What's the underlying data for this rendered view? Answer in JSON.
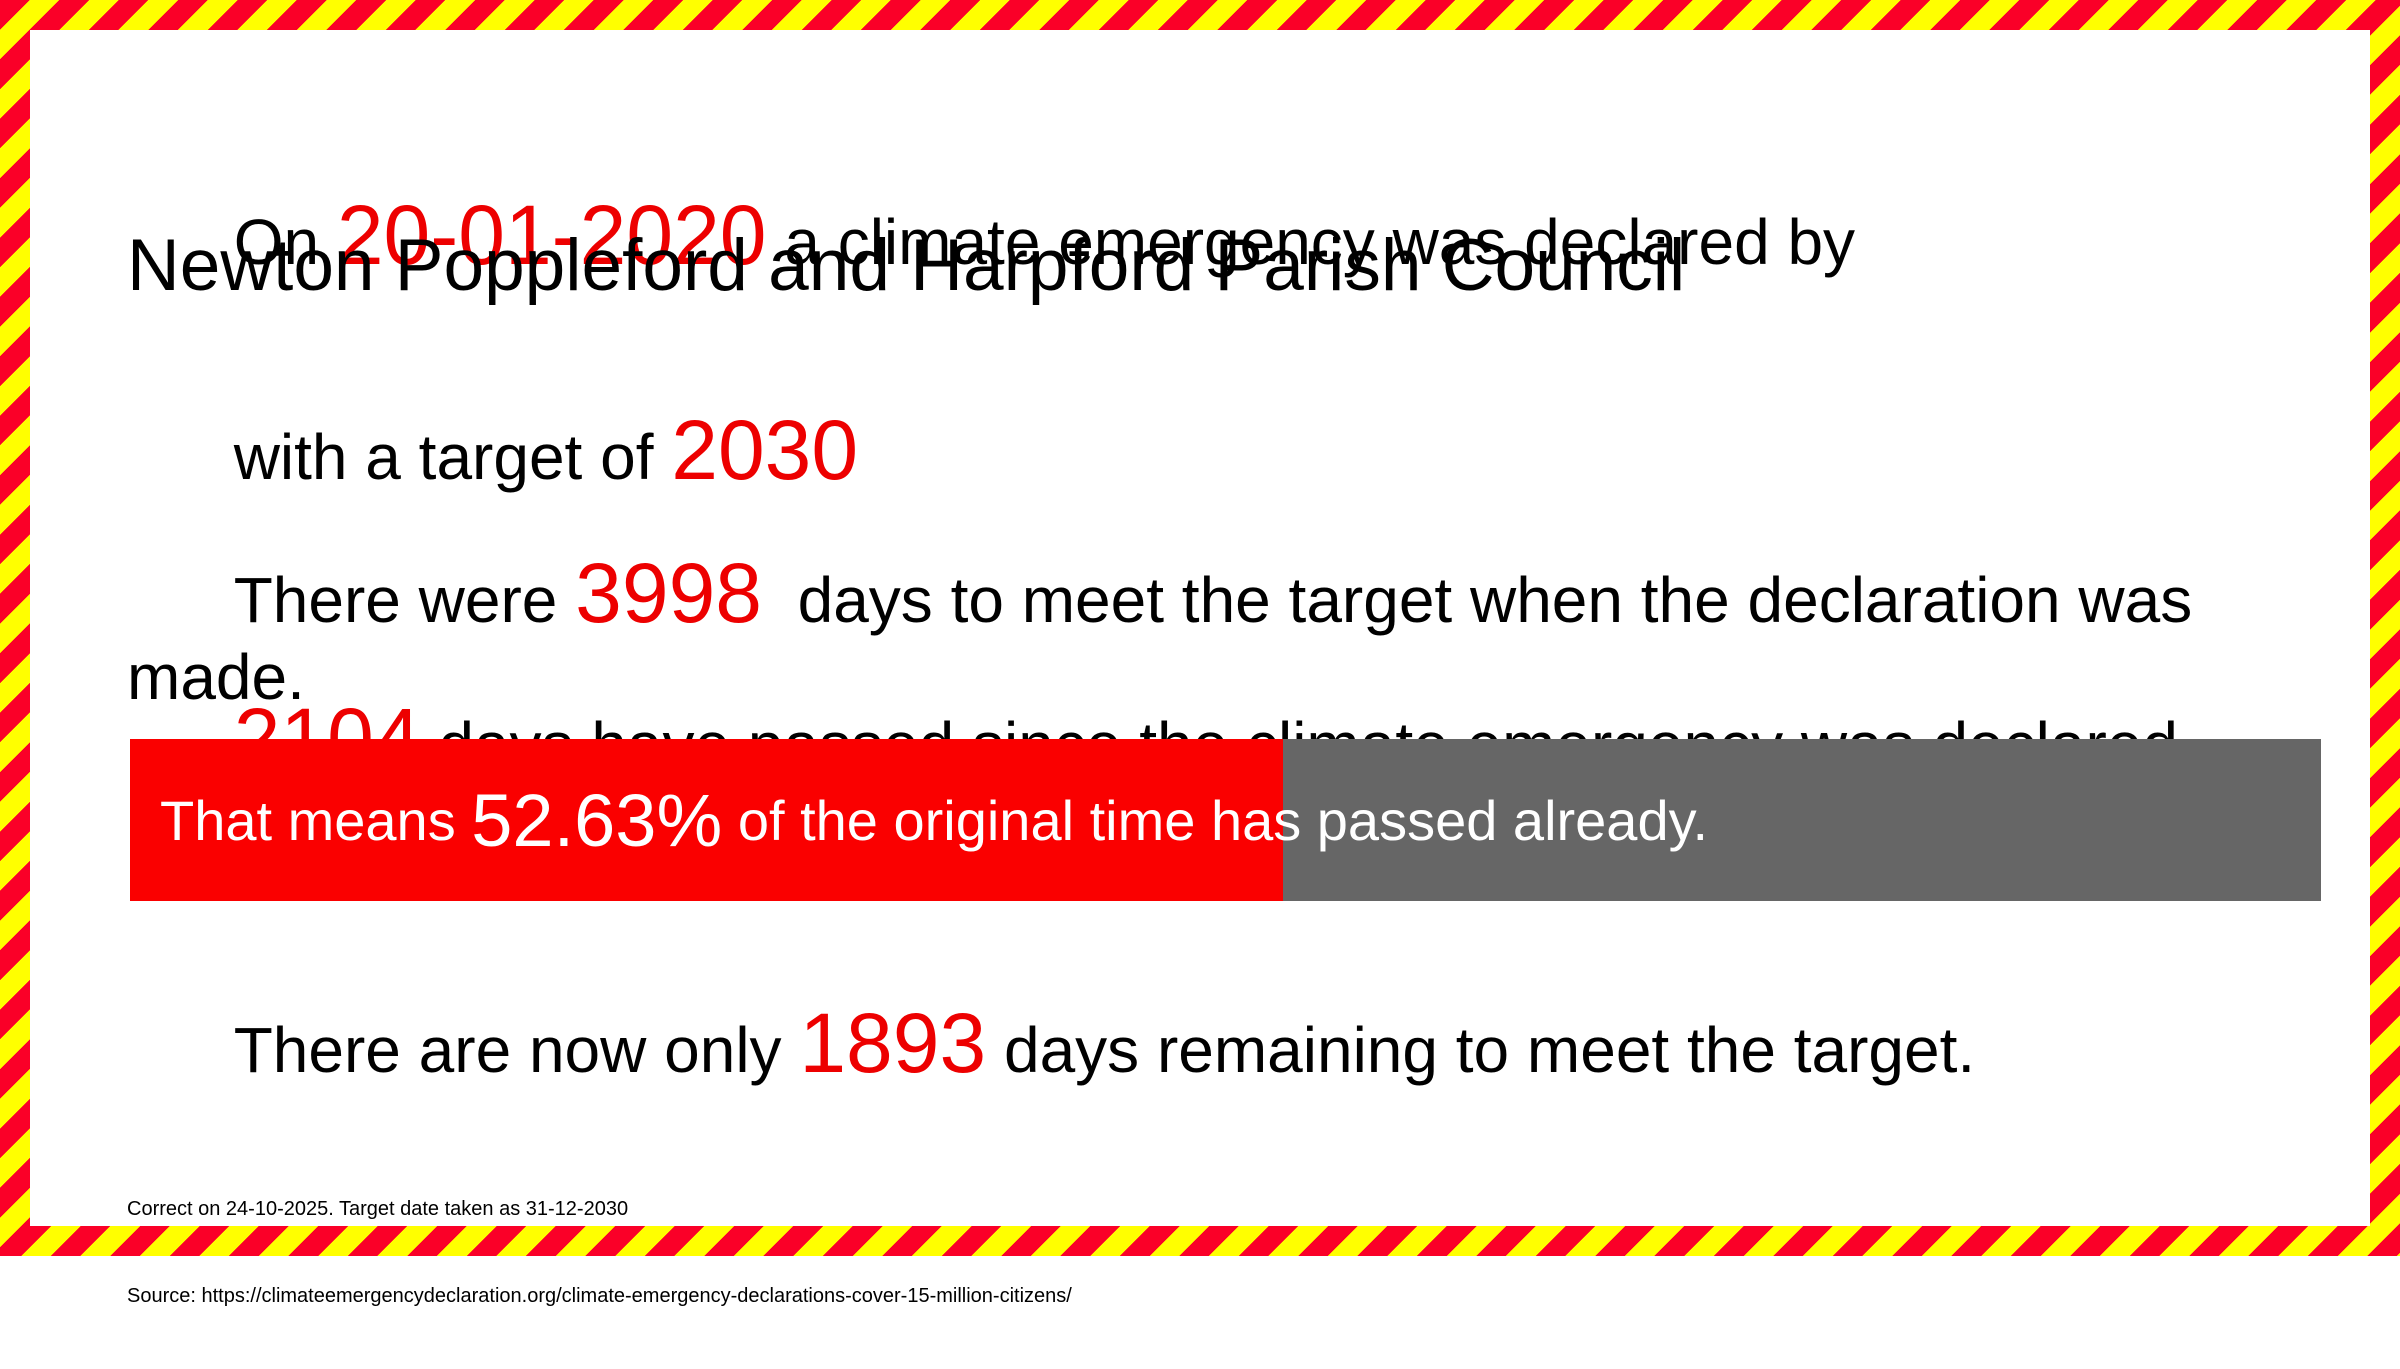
{
  "colors": {
    "border_red": "#FA0028",
    "border_yellow": "#FFFF00",
    "em_red": "#ED0000",
    "bar_red": "#FA0000",
    "bar_gray": "#666666",
    "text_black": "#000000"
  },
  "headline": {
    "pre": "On ",
    "date": "20-01-2020",
    "post": " a climate emergency was declared by",
    "council": "Newton Poppleford and Harpford Parish Council",
    "target_pre": "with a target of ",
    "target_year": "2030"
  },
  "body": {
    "original": {
      "pre": "There were ",
      "value": "3998",
      "post": "  days to meet the target when the declaration was made."
    },
    "elapsed": {
      "value": "2104",
      "post": " days have passed since the climate emergency was declared."
    },
    "progress": {
      "pre": "That means ",
      "value": "52.63%",
      "post": " of the original time has passed already.",
      "percent": 52.63
    },
    "remaining": {
      "pre": "There are now only ",
      "value": "1893",
      "post": " days remaining to meet the target."
    }
  },
  "footer": {
    "line1": "Correct on 24-10-2025. Target date taken as 31-12-2030",
    "line2": "Source: https://climateemergencydeclaration.org/climate-emergency-declarations-cover-15-million-citizens/"
  }
}
